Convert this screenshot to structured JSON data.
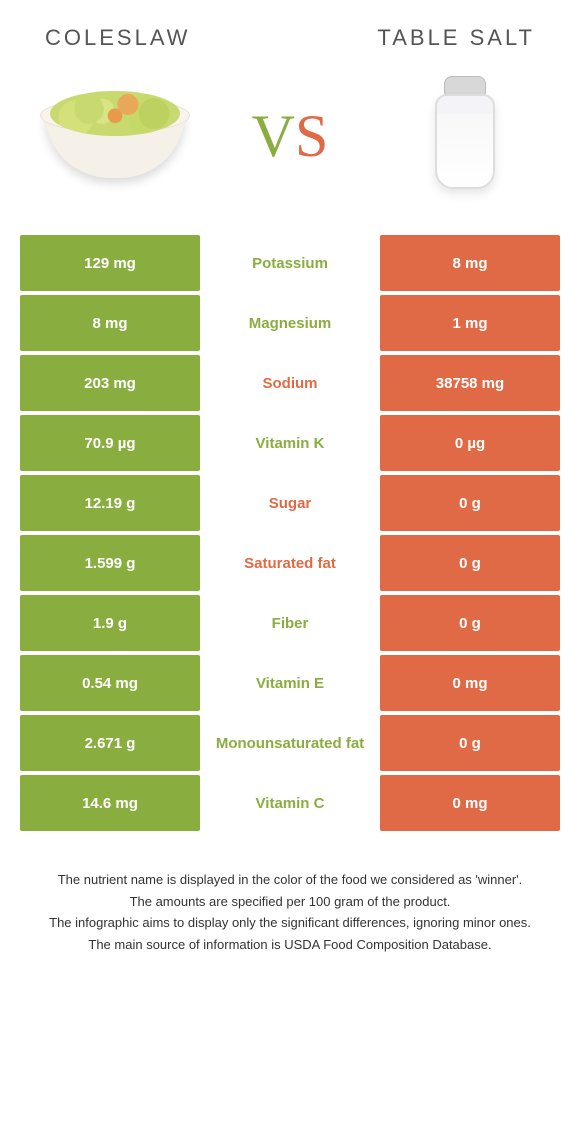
{
  "colors": {
    "left": "#8aad3f",
    "right": "#e06a45",
    "left_label": "#8aad3f",
    "right_label": "#e06a45",
    "page_bg": "#ffffff"
  },
  "header": {
    "left_title": "COLESLAW",
    "right_title": "TABLE SALT",
    "vs_v": "V",
    "vs_s": "S"
  },
  "rows": [
    {
      "left": "129 mg",
      "label": "Potassium",
      "right": "8 mg",
      "winner": "left"
    },
    {
      "left": "8 mg",
      "label": "Magnesium",
      "right": "1 mg",
      "winner": "left"
    },
    {
      "left": "203 mg",
      "label": "Sodium",
      "right": "38758 mg",
      "winner": "right"
    },
    {
      "left": "70.9 µg",
      "label": "Vitamin K",
      "right": "0 µg",
      "winner": "left"
    },
    {
      "left": "12.19 g",
      "label": "Sugar",
      "right": "0 g",
      "winner": "right"
    },
    {
      "left": "1.599 g",
      "label": "Saturated fat",
      "right": "0 g",
      "winner": "right"
    },
    {
      "left": "1.9 g",
      "label": "Fiber",
      "right": "0 g",
      "winner": "left"
    },
    {
      "left": "0.54 mg",
      "label": "Vitamin E",
      "right": "0 mg",
      "winner": "left"
    },
    {
      "left": "2.671 g",
      "label": "Monounsaturated fat",
      "right": "0 g",
      "winner": "left"
    },
    {
      "left": "14.6 mg",
      "label": "Vitamin C",
      "right": "0 mg",
      "winner": "left"
    }
  ],
  "footer": {
    "line1": "The nutrient name is displayed in the color of the food we considered as 'winner'.",
    "line2": "The amounts are specified per 100 gram of the product.",
    "line3": "The infographic aims to display only the significant differences, ignoring minor ones.",
    "line4": "The main source of information is USDA Food Composition Database."
  }
}
